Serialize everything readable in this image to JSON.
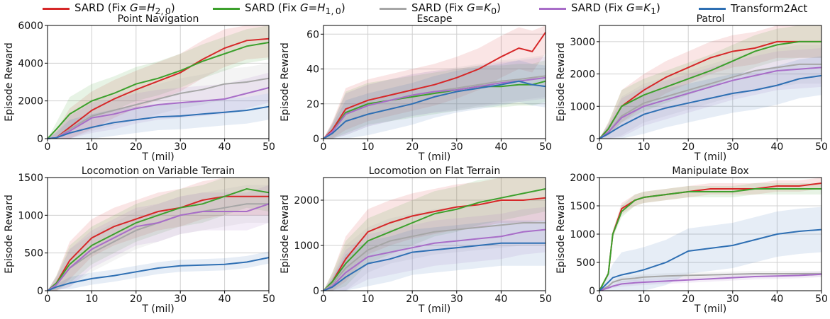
{
  "legend": [
    {
      "label": "SARD (Fix G=H2,0)",
      "html": "SARD (Fix <i>G</i>=<i>H</i><sub>2,&thinsp;0</sub>)",
      "color": "#d62728"
    },
    {
      "label": "SARD (Fix G=H1,0)",
      "html": "SARD (Fix <i>G</i>=<i>H</i><sub>1,&thinsp;0</sub>)",
      "color": "#3ca02c"
    },
    {
      "label": "SARD (Fix G=K0)",
      "html": "SARD (Fix <i>G</i>=<i>K</i><sub>0</sub>)",
      "color": "#a6a6a6"
    },
    {
      "label": "SARD (Fix G=K1)",
      "html": "SARD (Fix <i>G</i>=<i>K</i><sub>1</sub>)",
      "color": "#a86dc8"
    },
    {
      "label": "Transform2Act",
      "html": "Transform2Act",
      "color": "#2e6fb3"
    }
  ],
  "chart_data": [
    {
      "type": "line",
      "title": "Point Navigation",
      "xlabel": "T (mil)",
      "ylabel": "Episode Reward",
      "xlim": [
        0,
        50
      ],
      "ylim": [
        0,
        6000
      ],
      "xticks": [
        0,
        10,
        20,
        30,
        40,
        50
      ],
      "yticks": [
        0,
        2000,
        4000,
        6000
      ],
      "grid": true,
      "x": [
        0,
        2,
        5,
        10,
        15,
        20,
        25,
        30,
        35,
        40,
        45,
        50
      ],
      "series": [
        {
          "name": "SARD (Fix G=H2,0)",
          "values": [
            0,
            50,
            600,
            1500,
            2100,
            2600,
            3050,
            3500,
            4200,
            4800,
            5200,
            5300
          ],
          "band": 1000
        },
        {
          "name": "SARD (Fix G=H1,0)",
          "values": [
            0,
            500,
            1300,
            2000,
            2400,
            2900,
            3200,
            3600,
            4100,
            4500,
            4900,
            5100
          ],
          "band": 900
        },
        {
          "name": "SARD (Fix G=K0)",
          "values": [
            0,
            50,
            500,
            1200,
            1500,
            1800,
            2100,
            2400,
            2600,
            2900,
            3000,
            3200
          ],
          "band": 800
        },
        {
          "name": "SARD (Fix G=K1)",
          "values": [
            0,
            50,
            400,
            1100,
            1300,
            1600,
            1800,
            1900,
            2000,
            2100,
            2400,
            2700
          ],
          "band": 800
        },
        {
          "name": "Transform2Act",
          "values": [
            0,
            50,
            300,
            600,
            850,
            1000,
            1150,
            1200,
            1300,
            1400,
            1500,
            1700
          ],
          "band": 700
        }
      ]
    },
    {
      "type": "line",
      "title": "Escape",
      "xlabel": "T (mil)",
      "ylabel": "Episode Reward",
      "xlim": [
        0,
        50
      ],
      "ylim": [
        0,
        65
      ],
      "xticks": [
        0,
        10,
        20,
        30,
        40,
        50
      ],
      "yticks": [
        0,
        20,
        40,
        60
      ],
      "grid": true,
      "x": [
        0,
        2,
        5,
        10,
        15,
        20,
        25,
        30,
        35,
        40,
        44,
        47,
        50
      ],
      "series": [
        {
          "name": "SARD (Fix G=H2,0)",
          "values": [
            0,
            5,
            17,
            22,
            25,
            28,
            31,
            35,
            40,
            47,
            52,
            50,
            61
          ],
          "band": 12
        },
        {
          "name": "SARD (Fix G=H1,0)",
          "values": [
            0,
            4,
            15,
            20,
            22,
            24,
            26,
            28,
            30,
            30,
            31,
            31,
            33
          ],
          "band": 12
        },
        {
          "name": "SARD (Fix G=K0)",
          "values": [
            0,
            4,
            14,
            19,
            22,
            25,
            27,
            29,
            31,
            33,
            34,
            35,
            36
          ],
          "band": 12
        },
        {
          "name": "SARD (Fix G=K1)",
          "values": [
            0,
            4,
            14,
            19,
            22,
            25,
            27,
            28,
            30,
            32,
            33,
            34,
            35
          ],
          "band": 12
        },
        {
          "name": "Transform2Act",
          "values": [
            0,
            3,
            10,
            14,
            17,
            20,
            24,
            27,
            29,
            31,
            33,
            31,
            30
          ],
          "band": 12
        }
      ]
    },
    {
      "type": "line",
      "title": "Patrol",
      "xlabel": "T (mil)",
      "ylabel": "Episode Reward",
      "xlim": [
        0,
        50
      ],
      "ylim": [
        0,
        3500
      ],
      "xticks": [
        0,
        10,
        20,
        30,
        40,
        50
      ],
      "yticks": [
        0,
        1000,
        2000,
        3000
      ],
      "grid": true,
      "x": [
        0,
        2,
        5,
        10,
        15,
        20,
        25,
        30,
        35,
        40,
        45,
        50
      ],
      "series": [
        {
          "name": "SARD (Fix G=H2,0)",
          "values": [
            0,
            300,
            1000,
            1500,
            1900,
            2200,
            2500,
            2700,
            2800,
            3000,
            3000,
            3000
          ],
          "band": 500
        },
        {
          "name": "SARD (Fix G=H1,0)",
          "values": [
            0,
            300,
            1000,
            1350,
            1600,
            1850,
            2100,
            2400,
            2700,
            2900,
            3000,
            3000
          ],
          "band": 500
        },
        {
          "name": "SARD (Fix G=K0)",
          "values": [
            0,
            200,
            700,
            1100,
            1300,
            1500,
            1700,
            1900,
            2100,
            2200,
            2300,
            2300
          ],
          "band": 600
        },
        {
          "name": "SARD (Fix G=K1)",
          "values": [
            0,
            200,
            650,
            1000,
            1200,
            1400,
            1600,
            1800,
            1950,
            2100,
            2150,
            2200
          ],
          "band": 600
        },
        {
          "name": "Transform2Act",
          "values": [
            0,
            150,
            400,
            750,
            950,
            1100,
            1250,
            1400,
            1500,
            1650,
            1850,
            1950
          ],
          "band": 600
        }
      ]
    },
    {
      "type": "line",
      "title": "Locomotion on Variable Terrain",
      "xlabel": "T (mil)",
      "ylabel": "Episode Reward",
      "xlim": [
        0,
        50
      ],
      "ylim": [
        0,
        1500
      ],
      "xticks": [
        0,
        10,
        20,
        30,
        40,
        50
      ],
      "yticks": [
        0,
        500,
        1000,
        1500
      ],
      "grid": true,
      "x": [
        0,
        2,
        5,
        10,
        15,
        20,
        25,
        30,
        35,
        40,
        45,
        50
      ],
      "series": [
        {
          "name": "SARD (Fix G=H2,0)",
          "values": [
            0,
            100,
            400,
            700,
            850,
            950,
            1050,
            1100,
            1200,
            1250,
            1250,
            1250
          ],
          "band": 250
        },
        {
          "name": "SARD (Fix G=H1,0)",
          "values": [
            0,
            100,
            350,
            600,
            750,
            900,
            1000,
            1100,
            1150,
            1250,
            1350,
            1300
          ],
          "band": 250
        },
        {
          "name": "SARD (Fix G=K0)",
          "values": [
            0,
            80,
            300,
            500,
            650,
            800,
            900,
            1000,
            1050,
            1100,
            1150,
            1150
          ],
          "band": 250
        },
        {
          "name": "SARD (Fix G=K1)",
          "values": [
            0,
            80,
            300,
            550,
            700,
            850,
            900,
            1000,
            1050,
            1050,
            1050,
            1150
          ],
          "band": 250
        },
        {
          "name": "Transform2Act",
          "values": [
            0,
            50,
            100,
            160,
            200,
            250,
            300,
            330,
            340,
            350,
            380,
            440
          ],
          "band": 80
        }
      ]
    },
    {
      "type": "line",
      "title": "Locomotion on Flat Terrain",
      "xlabel": "T (mil)",
      "ylabel": "Episode Reward",
      "xlim": [
        0,
        50
      ],
      "ylim": [
        0,
        2500
      ],
      "xticks": [
        0,
        10,
        20,
        30,
        40,
        50
      ],
      "yticks": [
        0,
        1000,
        2000
      ],
      "grid": true,
      "x": [
        0,
        2,
        5,
        10,
        15,
        20,
        25,
        30,
        35,
        40,
        45,
        50
      ],
      "series": [
        {
          "name": "SARD (Fix G=H2,0)",
          "values": [
            0,
            200,
            700,
            1300,
            1500,
            1650,
            1750,
            1850,
            1900,
            2000,
            2000,
            2050
          ],
          "band": 500
        },
        {
          "name": "SARD (Fix G=H1,0)",
          "values": [
            0,
            200,
            600,
            1100,
            1300,
            1500,
            1700,
            1800,
            1950,
            2050,
            2150,
            2250
          ],
          "band": 500
        },
        {
          "name": "SARD (Fix G=K0)",
          "values": [
            0,
            150,
            500,
            900,
            1100,
            1200,
            1300,
            1350,
            1400,
            1450,
            1500,
            1500
          ],
          "band": 500
        },
        {
          "name": "SARD (Fix G=K1)",
          "values": [
            0,
            100,
            400,
            750,
            850,
            950,
            1050,
            1100,
            1150,
            1200,
            1300,
            1350
          ],
          "band": 500
        },
        {
          "name": "Transform2Act",
          "values": [
            0,
            80,
            300,
            600,
            700,
            850,
            900,
            950,
            1000,
            1050,
            1050,
            1050
          ],
          "band": 500
        }
      ]
    },
    {
      "type": "line",
      "title": "Manipulate Box",
      "xlabel": "T (mil)",
      "ylabel": "Episode Reward",
      "xlim": [
        0,
        50
      ],
      "ylim": [
        0,
        2000
      ],
      "xticks": [
        0,
        10,
        20,
        30,
        40,
        50
      ],
      "yticks": [
        0,
        500,
        1000,
        1500,
        2000
      ],
      "grid": true,
      "x": [
        0,
        2,
        3,
        5,
        8,
        10,
        15,
        20,
        25,
        30,
        35,
        40,
        45,
        50
      ],
      "series": [
        {
          "name": "SARD (Fix G=H2,0)",
          "values": [
            0,
            300,
            1000,
            1450,
            1600,
            1650,
            1700,
            1750,
            1800,
            1800,
            1800,
            1850,
            1850,
            1900
          ],
          "band": 100
        },
        {
          "name": "SARD (Fix G=H1,0)",
          "values": [
            0,
            300,
            1000,
            1400,
            1600,
            1650,
            1700,
            1750,
            1750,
            1750,
            1800,
            1800,
            1800,
            1800
          ],
          "band": 100
        },
        {
          "name": "SARD (Fix G=K0)",
          "values": [
            0,
            80,
            150,
            200,
            220,
            240,
            260,
            270,
            280,
            290,
            300,
            300,
            300,
            300
          ],
          "band": 50
        },
        {
          "name": "SARD (Fix G=K1)",
          "values": [
            0,
            50,
            80,
            120,
            140,
            150,
            170,
            190,
            210,
            230,
            250,
            260,
            270,
            290
          ],
          "band": 50
        },
        {
          "name": "Transform2Act",
          "values": [
            0,
            150,
            230,
            280,
            330,
            370,
            500,
            700,
            750,
            800,
            900,
            1000,
            1050,
            1080
          ],
          "band": 400
        }
      ]
    }
  ]
}
